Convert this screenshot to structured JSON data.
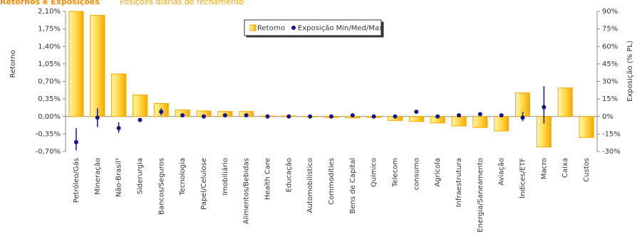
{
  "chart_data": {
    "type": "bar",
    "title": "Retornos e Exposições",
    "subtitle": "Posições diárias de fechamento",
    "ylabel": "Retorno",
    "y2label": "Exposição (% PL)",
    "categories": [
      "Petróleo/Gás",
      "Mineração",
      "Não-Brasil¹",
      "Siderurgia",
      "Bancos/Seguros",
      "Tecnologia",
      "Papel/Celulose",
      "Imobiliário",
      "Alimentos/Bebidas",
      "Health Care",
      "Educação",
      "Automobilístico",
      "Commodities",
      "Bens de Capital",
      "Químico",
      "Telecom",
      "consumo",
      "Agrícola",
      "Infraestrutura",
      "Energia/Saneamento",
      "Aviação",
      "Índices/ETF",
      "Macro",
      "Caixa",
      "Custos"
    ],
    "series": [
      {
        "name": "Retorno",
        "color": "#f5a800",
        "values": [
          2.1,
          2.02,
          0.85,
          0.43,
          0.26,
          0.13,
          0.11,
          0.1,
          0.1,
          0.01,
          0.01,
          0.0,
          -0.02,
          -0.03,
          -0.02,
          -0.08,
          -0.1,
          -0.13,
          -0.19,
          -0.22,
          -0.29,
          0.47,
          -0.61,
          0.57,
          -0.42
        ]
      },
      {
        "name": "Exposição Min/Med/Max",
        "color": "#14148c",
        "axis": "y2",
        "values": [
          -22,
          -1,
          -10,
          -3,
          4,
          1,
          0,
          1,
          1,
          0,
          0,
          0,
          0,
          1,
          0,
          0,
          4,
          0,
          1,
          2,
          1,
          -1,
          8,
          null,
          null
        ],
        "min": [
          -29,
          -9,
          -14,
          null,
          1,
          null,
          null,
          null,
          null,
          null,
          null,
          null,
          null,
          null,
          null,
          null,
          null,
          null,
          null,
          null,
          null,
          -4,
          -6,
          null,
          null
        ],
        "max": [
          -10,
          7,
          -5,
          null,
          7,
          null,
          null,
          null,
          null,
          null,
          null,
          null,
          null,
          null,
          null,
          null,
          null,
          null,
          null,
          null,
          null,
          4,
          26,
          null,
          null
        ]
      }
    ],
    "ylim": [
      -0.7,
      2.1
    ],
    "yticks": [
      {
        "value": -0.7,
        "label": "-0,70%"
      },
      {
        "value": -0.35,
        "label": "-0,35%"
      },
      {
        "value": 0,
        "label": "0,00%"
      },
      {
        "value": 0.35,
        "label": "0,35%"
      },
      {
        "value": 0.7,
        "label": "0,70%"
      },
      {
        "value": 1.05,
        "label": "1,05%"
      },
      {
        "value": 1.4,
        "label": "1,40%"
      },
      {
        "value": 1.75,
        "label": "1,75%"
      },
      {
        "value": 2.1,
        "label": "2,10%"
      }
    ],
    "y2lim": [
      -30,
      90
    ],
    "y2ticks": [
      {
        "value": -30,
        "label": "-30%"
      },
      {
        "value": -15,
        "label": "-15%"
      },
      {
        "value": 0,
        "label": "0%"
      },
      {
        "value": 15,
        "label": "15%"
      },
      {
        "value": 30,
        "label": "30%"
      },
      {
        "value": 45,
        "label": "45%"
      },
      {
        "value": 60,
        "label": "60%"
      },
      {
        "value": 75,
        "label": "75%"
      },
      {
        "value": 90,
        "label": "90%"
      }
    ],
    "legend": "top-center"
  }
}
